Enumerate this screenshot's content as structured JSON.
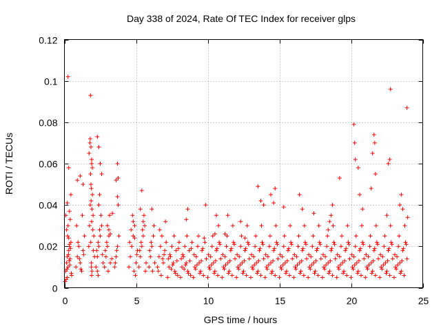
{
  "chart_data": {
    "type": "scatter",
    "title": "Day 338 of 2024, Rate Of TEC Index for receiver glps",
    "xlabel": "GPS time / hours",
    "ylabel": "ROTI / TECUs",
    "xlim": [
      0,
      25
    ],
    "ylim": [
      0,
      0.12
    ],
    "xticks": [
      0,
      5,
      10,
      15,
      20,
      25
    ],
    "xtick_labels": [
      "0",
      "5",
      "10",
      "15",
      "20",
      "25"
    ],
    "yticks": [
      0,
      0.02,
      0.04,
      0.06,
      0.08,
      0.1,
      0.12
    ],
    "ytick_labels": [
      "0",
      "0.02",
      "0.04",
      "0.06",
      "0.08",
      "0.1",
      "0.12"
    ],
    "grid": true,
    "marker": "+",
    "color": "#ff0000",
    "series": [
      {
        "name": "ROTI",
        "x": [
          0.1,
          0.15,
          0.2,
          0.25,
          0.3,
          0.35,
          0.4,
          0.45,
          0.5,
          0.12,
          0.18,
          0.22,
          0.28,
          0.33,
          0.38,
          0.42,
          0.48,
          0.1,
          0.2,
          0.3,
          0.25,
          0.35,
          0.45,
          0.05,
          0.15,
          0.25,
          0.3,
          0.35,
          0.4,
          0.2,
          0.8,
          0.9,
          1.0,
          1.1,
          1.2,
          1.3,
          1.4,
          0.85,
          0.95,
          1.05,
          1.15,
          1.25,
          1.35,
          0.9,
          1.1,
          1.3,
          1.7,
          1.75,
          1.8,
          1.85,
          1.9,
          1.95,
          2.0,
          2.05,
          2.1,
          1.72,
          1.78,
          1.82,
          1.88,
          1.92,
          1.98,
          2.02,
          1.8,
          1.85,
          1.9,
          1.95,
          1.82,
          1.88,
          1.92,
          1.86,
          1.9,
          1.84,
          1.88,
          1.9,
          2.2,
          2.3,
          2.4,
          2.5,
          2.6,
          2.7,
          2.25,
          2.35,
          2.45,
          2.55,
          2.65,
          2.3,
          2.4,
          2.5,
          2.6,
          2.4,
          2.45,
          2.3,
          2.35,
          2.8,
          2.9,
          3.0,
          3.1,
          3.2,
          2.85,
          2.95,
          3.05,
          3.15,
          3.0,
          3.1,
          3.2,
          3.3,
          3.35,
          3.5,
          3.6,
          3.7,
          3.8,
          3.55,
          3.65,
          3.75,
          3.6,
          3.7,
          3.7,
          3.75,
          4.5,
          4.6,
          4.7,
          4.8,
          4.9,
          5.0,
          5.1,
          4.55,
          4.65,
          4.75,
          4.85,
          4.95,
          5.05,
          4.8,
          4.9,
          5.2,
          5.3,
          5.4,
          5.5,
          5.6,
          5.7,
          5.25,
          5.35,
          5.45,
          5.55,
          5.65,
          5.4,
          5.5,
          5.3,
          5.9,
          6.0,
          6.1,
          6.2,
          6.3,
          5.95,
          6.05,
          6.15,
          6.25,
          6.1,
          6.5,
          6.6,
          6.7,
          6.8,
          6.9,
          7.0,
          7.1,
          6.55,
          6.65,
          6.75,
          6.85,
          6.95,
          7.05,
          7.2,
          7.3,
          7.4,
          7.5,
          7.6,
          7.7,
          7.8,
          7.9,
          8.0,
          7.25,
          7.35,
          7.45,
          7.55,
          7.65,
          7.75,
          7.85,
          7.95,
          8.1,
          8.2,
          8.3,
          8.4,
          8.5,
          8.6,
          8.7,
          8.8,
          8.9,
          8.15,
          8.25,
          8.35,
          8.45,
          8.55,
          8.65,
          8.75,
          8.85,
          8.5,
          8.6,
          9.0,
          9.1,
          9.2,
          9.3,
          9.4,
          9.5,
          9.6,
          9.7,
          9.8,
          9.9,
          9.05,
          9.15,
          9.25,
          9.35,
          9.45,
          9.55,
          9.65,
          9.75,
          9.85,
          10.0,
          10.1,
          10.2,
          10.3,
          10.4,
          10.5,
          10.6,
          10.7,
          10.8,
          10.9,
          10.05,
          10.15,
          10.25,
          10.35,
          10.45,
          10.55,
          10.65,
          10.75,
          10.85,
          10.5,
          10.6,
          11.0,
          11.1,
          11.2,
          11.3,
          11.4,
          11.5,
          11.6,
          11.7,
          11.8,
          11.9,
          11.05,
          11.15,
          11.25,
          11.35,
          11.45,
          11.55,
          11.65,
          11.75,
          11.85,
          11.2,
          11.4,
          12.0,
          12.1,
          12.2,
          12.3,
          12.4,
          12.5,
          12.6,
          12.7,
          12.8,
          12.9,
          12.05,
          12.15,
          12.25,
          12.35,
          12.45,
          12.55,
          12.65,
          12.75,
          12.85,
          12.3,
          12.6,
          13.0,
          13.1,
          13.2,
          13.3,
          13.4,
          13.5,
          13.6,
          13.7,
          13.8,
          13.9,
          13.05,
          13.15,
          13.25,
          13.35,
          13.45,
          13.55,
          13.65,
          13.75,
          13.85,
          13.5,
          13.7,
          13.9,
          14.0,
          14.1,
          14.2,
          14.3,
          14.4,
          14.5,
          14.6,
          14.7,
          14.8,
          14.9,
          14.05,
          14.15,
          14.25,
          14.35,
          14.45,
          14.55,
          14.65,
          14.75,
          14.85,
          14.4,
          14.6,
          14.7,
          15.0,
          15.1,
          15.2,
          15.3,
          15.4,
          15.5,
          15.6,
          15.7,
          15.8,
          15.9,
          15.05,
          15.15,
          15.25,
          15.35,
          15.45,
          15.55,
          15.65,
          15.75,
          15.85,
          15.3,
          16.0,
          16.1,
          16.2,
          16.3,
          16.4,
          16.5,
          16.6,
          16.7,
          16.8,
          16.9,
          16.05,
          16.15,
          16.25,
          16.35,
          16.45,
          16.55,
          16.65,
          16.75,
          16.85,
          16.4,
          16.6,
          17.0,
          17.1,
          17.2,
          17.3,
          17.4,
          17.5,
          17.6,
          17.7,
          17.8,
          17.9,
          17.05,
          17.15,
          17.25,
          17.35,
          17.45,
          17.55,
          17.65,
          17.75,
          17.85,
          17.4,
          18.0,
          18.1,
          18.2,
          18.3,
          18.4,
          18.5,
          18.6,
          18.7,
          18.8,
          18.9,
          18.05,
          18.15,
          18.25,
          18.35,
          18.45,
          18.55,
          18.65,
          18.75,
          18.85,
          18.4,
          18.5,
          18.6,
          18.7,
          19.0,
          19.1,
          19.2,
          19.3,
          19.4,
          19.5,
          19.6,
          19.7,
          19.8,
          19.9,
          19.05,
          19.15,
          19.25,
          19.35,
          19.45,
          19.55,
          19.65,
          19.75,
          19.85,
          19.2,
          20.0,
          20.1,
          20.2,
          20.3,
          20.4,
          20.5,
          20.6,
          20.7,
          20.8,
          20.9,
          20.05,
          20.15,
          20.25,
          20.35,
          20.45,
          20.55,
          20.65,
          20.75,
          20.85,
          20.2,
          20.25,
          20.3,
          20.5,
          20.6,
          20.8,
          21.0,
          21.1,
          21.2,
          21.3,
          21.4,
          21.5,
          21.6,
          21.7,
          21.8,
          21.9,
          21.05,
          21.15,
          21.25,
          21.35,
          21.45,
          21.55,
          21.65,
          21.75,
          21.85,
          21.5,
          21.6,
          21.65,
          21.7,
          21.4,
          22.0,
          22.1,
          22.2,
          22.3,
          22.4,
          22.5,
          22.6,
          22.7,
          22.8,
          22.9,
          22.05,
          22.15,
          22.25,
          22.35,
          22.45,
          22.55,
          22.65,
          22.75,
          22.85,
          22.5,
          22.6,
          22.7,
          22.75,
          23.0,
          23.1,
          23.2,
          23.3,
          23.4,
          23.5,
          23.6,
          23.7,
          23.8,
          23.9,
          23.05,
          23.15,
          23.25,
          23.35,
          23.45,
          23.55,
          23.65,
          23.75,
          23.85,
          23.5,
          23.6,
          23.9,
          23.95,
          23.4
        ],
        "y": [
          0.008,
          0.012,
          0.015,
          0.01,
          0.018,
          0.02,
          0.014,
          0.022,
          0.006,
          0.004,
          0.009,
          0.025,
          0.016,
          0.013,
          0.011,
          0.019,
          0.007,
          0.035,
          0.041,
          0.058,
          0.102,
          0.037,
          0.045,
          0.003,
          0.028,
          0.03,
          0.024,
          0.021,
          0.033,
          0.005,
          0.01,
          0.015,
          0.02,
          0.012,
          0.008,
          0.018,
          0.025,
          0.03,
          0.022,
          0.014,
          0.009,
          0.035,
          0.016,
          0.052,
          0.054,
          0.05,
          0.02,
          0.03,
          0.04,
          0.05,
          0.06,
          0.045,
          0.035,
          0.025,
          0.015,
          0.065,
          0.07,
          0.055,
          0.048,
          0.038,
          0.028,
          0.018,
          0.072,
          0.068,
          0.062,
          0.058,
          0.093,
          0.01,
          0.008,
          0.042,
          0.032,
          0.022,
          0.012,
          0.006,
          0.01,
          0.015,
          0.02,
          0.025,
          0.03,
          0.012,
          0.018,
          0.022,
          0.028,
          0.035,
          0.016,
          0.073,
          0.068,
          0.06,
          0.055,
          0.04,
          0.045,
          0.008,
          0.006,
          0.01,
          0.015,
          0.02,
          0.025,
          0.012,
          0.018,
          0.022,
          0.008,
          0.035,
          0.03,
          0.028,
          0.026,
          0.014,
          0.036,
          0.01,
          0.015,
          0.02,
          0.025,
          0.012,
          0.018,
          0.053,
          0.052,
          0.044,
          0.06,
          0.04,
          0.01,
          0.015,
          0.02,
          0.025,
          0.03,
          0.012,
          0.018,
          0.022,
          0.028,
          0.035,
          0.008,
          0.006,
          0.016,
          0.032,
          0.024,
          0.01,
          0.015,
          0.02,
          0.025,
          0.03,
          0.012,
          0.018,
          0.022,
          0.028,
          0.035,
          0.008,
          0.047,
          0.032,
          0.038,
          0.01,
          0.015,
          0.02,
          0.025,
          0.012,
          0.018,
          0.022,
          0.008,
          0.03,
          0.038,
          0.01,
          0.015,
          0.02,
          0.025,
          0.012,
          0.018,
          0.022,
          0.008,
          0.028,
          0.006,
          0.014,
          0.016,
          0.032,
          0.005,
          0.01,
          0.015,
          0.02,
          0.012,
          0.008,
          0.018,
          0.006,
          0.022,
          0.014,
          0.016,
          0.009,
          0.011,
          0.025,
          0.007,
          0.013,
          0.019,
          0.005,
          0.01,
          0.015,
          0.02,
          0.012,
          0.008,
          0.018,
          0.006,
          0.022,
          0.014,
          0.016,
          0.009,
          0.011,
          0.025,
          0.007,
          0.013,
          0.019,
          0.033,
          0.038,
          0.005,
          0.01,
          0.015,
          0.02,
          0.012,
          0.008,
          0.018,
          0.006,
          0.022,
          0.014,
          0.016,
          0.009,
          0.011,
          0.025,
          0.007,
          0.013,
          0.019,
          0.024,
          0.04,
          0.005,
          0.01,
          0.015,
          0.02,
          0.012,
          0.008,
          0.018,
          0.006,
          0.022,
          0.014,
          0.016,
          0.009,
          0.011,
          0.025,
          0.007,
          0.013,
          0.019,
          0.03,
          0.021,
          0.026,
          0.035,
          0.005,
          0.01,
          0.015,
          0.02,
          0.012,
          0.008,
          0.018,
          0.006,
          0.022,
          0.014,
          0.016,
          0.009,
          0.011,
          0.025,
          0.007,
          0.013,
          0.019,
          0.03,
          0.021,
          0.026,
          0.035,
          0.005,
          0.01,
          0.015,
          0.02,
          0.012,
          0.008,
          0.018,
          0.006,
          0.022,
          0.014,
          0.016,
          0.009,
          0.011,
          0.025,
          0.007,
          0.013,
          0.019,
          0.03,
          0.021,
          0.032,
          0.024,
          0.005,
          0.01,
          0.015,
          0.02,
          0.012,
          0.008,
          0.018,
          0.006,
          0.022,
          0.014,
          0.016,
          0.009,
          0.011,
          0.025,
          0.007,
          0.013,
          0.019,
          0.03,
          0.021,
          0.049,
          0.042,
          0.04,
          0.005,
          0.01,
          0.015,
          0.02,
          0.012,
          0.008,
          0.018,
          0.006,
          0.022,
          0.014,
          0.016,
          0.009,
          0.011,
          0.025,
          0.007,
          0.013,
          0.019,
          0.03,
          0.021,
          0.045,
          0.041,
          0.048,
          0.005,
          0.01,
          0.015,
          0.02,
          0.012,
          0.008,
          0.018,
          0.006,
          0.022,
          0.014,
          0.016,
          0.009,
          0.011,
          0.025,
          0.007,
          0.013,
          0.019,
          0.03,
          0.021,
          0.039,
          0.005,
          0.01,
          0.015,
          0.02,
          0.012,
          0.008,
          0.018,
          0.006,
          0.022,
          0.014,
          0.016,
          0.009,
          0.011,
          0.025,
          0.007,
          0.013,
          0.019,
          0.03,
          0.021,
          0.045,
          0.038,
          0.005,
          0.01,
          0.015,
          0.02,
          0.012,
          0.008,
          0.018,
          0.006,
          0.022,
          0.014,
          0.016,
          0.009,
          0.011,
          0.025,
          0.007,
          0.013,
          0.019,
          0.03,
          0.021,
          0.036,
          0.005,
          0.01,
          0.015,
          0.02,
          0.012,
          0.008,
          0.018,
          0.006,
          0.022,
          0.014,
          0.016,
          0.009,
          0.011,
          0.025,
          0.007,
          0.013,
          0.019,
          0.03,
          0.021,
          0.028,
          0.032,
          0.035,
          0.04,
          0.005,
          0.01,
          0.015,
          0.02,
          0.012,
          0.008,
          0.018,
          0.006,
          0.022,
          0.014,
          0.016,
          0.009,
          0.011,
          0.025,
          0.007,
          0.013,
          0.019,
          0.03,
          0.021,
          0.053,
          0.005,
          0.01,
          0.015,
          0.02,
          0.012,
          0.008,
          0.018,
          0.006,
          0.022,
          0.014,
          0.016,
          0.009,
          0.011,
          0.025,
          0.007,
          0.013,
          0.019,
          0.03,
          0.021,
          0.079,
          0.07,
          0.062,
          0.058,
          0.045,
          0.038,
          0.005,
          0.01,
          0.015,
          0.02,
          0.012,
          0.008,
          0.018,
          0.006,
          0.022,
          0.014,
          0.016,
          0.009,
          0.011,
          0.025,
          0.007,
          0.013,
          0.019,
          0.03,
          0.021,
          0.065,
          0.074,
          0.07,
          0.055,
          0.048,
          0.005,
          0.01,
          0.015,
          0.02,
          0.012,
          0.008,
          0.018,
          0.006,
          0.022,
          0.014,
          0.016,
          0.009,
          0.011,
          0.025,
          0.007,
          0.013,
          0.019,
          0.03,
          0.021,
          0.035,
          0.06,
          0.062,
          0.096,
          0.005,
          0.01,
          0.015,
          0.02,
          0.012,
          0.008,
          0.018,
          0.006,
          0.022,
          0.014,
          0.016,
          0.009,
          0.011,
          0.025,
          0.007,
          0.013,
          0.019,
          0.03,
          0.021,
          0.045,
          0.038,
          0.087,
          0.034,
          0.04
        ]
      }
    ]
  }
}
